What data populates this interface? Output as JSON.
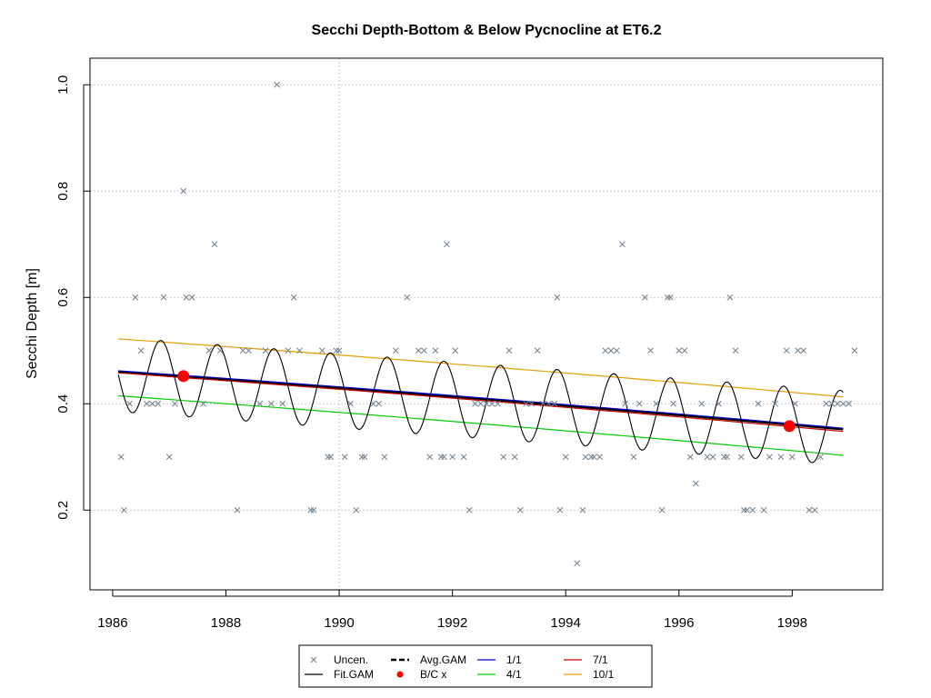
{
  "chart_data": {
    "type": "scatter",
    "title": "Secchi Depth-Bottom & Below Pycnocline at ET6.2",
    "xlabel": "",
    "ylabel": "Secchi Depth [m]",
    "xlim": [
      1985.6,
      1999.6
    ],
    "ylim": [
      0.05,
      1.05
    ],
    "x_ticks": [
      "1986",
      "1988",
      "1990",
      "1992",
      "1994",
      "1996",
      "1998"
    ],
    "y_ticks": [
      "0.2",
      "0.4",
      "0.6",
      "0.8",
      "1.0"
    ],
    "grid": true,
    "legend_position": "bottom",
    "legend": [
      {
        "label": "Uncen.",
        "kind": "x",
        "color": "#708090"
      },
      {
        "label": "Avg.GAM",
        "kind": "dash",
        "color": "#000000"
      },
      {
        "label": "1/1",
        "kind": "line",
        "color": "#0000cc"
      },
      {
        "label": "7/1",
        "kind": "line",
        "color": "#cc0000"
      },
      {
        "label": "Fit.GAM",
        "kind": "line",
        "color": "#000000"
      },
      {
        "label": "B/C x",
        "kind": "dot",
        "color": "#ff0000"
      },
      {
        "label": "4/1",
        "kind": "line",
        "color": "#00cc00"
      },
      {
        "label": "10/1",
        "kind": "line",
        "color": "#e69f00"
      }
    ],
    "series": [
      {
        "name": "Uncen.",
        "kind": "points",
        "color": "#708090",
        "points": [
          [
            1986.15,
            0.3
          ],
          [
            1986.2,
            0.2
          ],
          [
            1986.3,
            0.4
          ],
          [
            1986.4,
            0.6
          ],
          [
            1986.5,
            0.5
          ],
          [
            1986.6,
            0.4
          ],
          [
            1986.7,
            0.4
          ],
          [
            1986.8,
            0.4
          ],
          [
            1986.9,
            0.6
          ],
          [
            1987.0,
            0.3
          ],
          [
            1987.1,
            0.4
          ],
          [
            1987.25,
            0.8
          ],
          [
            1987.3,
            0.6
          ],
          [
            1987.4,
            0.6
          ],
          [
            1987.6,
            0.4
          ],
          [
            1987.7,
            0.5
          ],
          [
            1987.8,
            0.7
          ],
          [
            1987.9,
            0.5
          ],
          [
            1988.2,
            0.2
          ],
          [
            1988.3,
            0.5
          ],
          [
            1988.4,
            0.5
          ],
          [
            1988.6,
            0.4
          ],
          [
            1988.7,
            0.5
          ],
          [
            1988.8,
            0.4
          ],
          [
            1988.9,
            1.0
          ],
          [
            1989.0,
            0.4
          ],
          [
            1989.1,
            0.5
          ],
          [
            1989.2,
            0.6
          ],
          [
            1989.3,
            0.5
          ],
          [
            1989.5,
            0.2
          ],
          [
            1989.55,
            0.2
          ],
          [
            1989.7,
            0.5
          ],
          [
            1989.8,
            0.3
          ],
          [
            1989.85,
            0.3
          ],
          [
            1989.95,
            0.5
          ],
          [
            1990.0,
            0.5
          ],
          [
            1990.1,
            0.3
          ],
          [
            1990.2,
            0.4
          ],
          [
            1990.3,
            0.2
          ],
          [
            1990.4,
            0.3
          ],
          [
            1990.45,
            0.3
          ],
          [
            1990.6,
            0.4
          ],
          [
            1990.7,
            0.4
          ],
          [
            1990.8,
            0.3
          ],
          [
            1991.0,
            0.5
          ],
          [
            1991.2,
            0.6
          ],
          [
            1991.4,
            0.5
          ],
          [
            1991.5,
            0.5
          ],
          [
            1991.6,
            0.3
          ],
          [
            1991.7,
            0.5
          ],
          [
            1991.8,
            0.3
          ],
          [
            1991.85,
            0.3
          ],
          [
            1991.9,
            0.7
          ],
          [
            1992.0,
            0.3
          ],
          [
            1992.05,
            0.5
          ],
          [
            1992.2,
            0.3
          ],
          [
            1992.3,
            0.2
          ],
          [
            1992.4,
            0.4
          ],
          [
            1992.5,
            0.4
          ],
          [
            1992.6,
            0.4
          ],
          [
            1992.7,
            0.4
          ],
          [
            1992.8,
            0.4
          ],
          [
            1992.9,
            0.3
          ],
          [
            1993.0,
            0.5
          ],
          [
            1993.1,
            0.3
          ],
          [
            1993.2,
            0.2
          ],
          [
            1993.3,
            0.4
          ],
          [
            1993.4,
            0.4
          ],
          [
            1993.5,
            0.5
          ],
          [
            1993.6,
            0.4
          ],
          [
            1993.7,
            0.4
          ],
          [
            1993.8,
            0.4
          ],
          [
            1993.85,
            0.6
          ],
          [
            1993.9,
            0.2
          ],
          [
            1994.0,
            0.3
          ],
          [
            1994.2,
            0.1
          ],
          [
            1994.3,
            0.2
          ],
          [
            1994.35,
            0.3
          ],
          [
            1994.45,
            0.3
          ],
          [
            1994.5,
            0.3
          ],
          [
            1994.6,
            0.3
          ],
          [
            1994.7,
            0.5
          ],
          [
            1994.8,
            0.5
          ],
          [
            1994.9,
            0.5
          ],
          [
            1995.0,
            0.7
          ],
          [
            1995.05,
            0.4
          ],
          [
            1995.2,
            0.3
          ],
          [
            1995.3,
            0.4
          ],
          [
            1995.4,
            0.6
          ],
          [
            1995.5,
            0.5
          ],
          [
            1995.6,
            0.4
          ],
          [
            1995.7,
            0.2
          ],
          [
            1995.8,
            0.6
          ],
          [
            1995.85,
            0.6
          ],
          [
            1995.9,
            0.4
          ],
          [
            1996.0,
            0.5
          ],
          [
            1996.1,
            0.5
          ],
          [
            1996.2,
            0.3
          ],
          [
            1996.3,
            0.25
          ],
          [
            1996.4,
            0.4
          ],
          [
            1996.5,
            0.3
          ],
          [
            1996.6,
            0.3
          ],
          [
            1996.7,
            0.4
          ],
          [
            1996.8,
            0.3
          ],
          [
            1996.85,
            0.3
          ],
          [
            1996.9,
            0.6
          ],
          [
            1997.0,
            0.5
          ],
          [
            1997.1,
            0.3
          ],
          [
            1997.15,
            0.2
          ],
          [
            1997.2,
            0.2
          ],
          [
            1997.3,
            0.2
          ],
          [
            1997.4,
            0.4
          ],
          [
            1997.5,
            0.2
          ],
          [
            1997.6,
            0.3
          ],
          [
            1997.7,
            0.4
          ],
          [
            1997.8,
            0.3
          ],
          [
            1997.9,
            0.5
          ],
          [
            1998.0,
            0.3
          ],
          [
            1998.05,
            0.4
          ],
          [
            1998.1,
            0.5
          ],
          [
            1998.2,
            0.5
          ],
          [
            1998.3,
            0.2
          ],
          [
            1998.4,
            0.2
          ],
          [
            1998.5,
            0.3
          ],
          [
            1998.6,
            0.4
          ],
          [
            1998.7,
            0.4
          ],
          [
            1998.8,
            0.4
          ],
          [
            1998.9,
            0.4
          ],
          [
            1999.0,
            0.4
          ],
          [
            1999.1,
            0.5
          ]
        ]
      },
      {
        "name": "Fit.GAM",
        "kind": "seasonal",
        "color": "#000000",
        "start": 1986.1,
        "end": 1998.9,
        "start_level": 0.455,
        "end_level": 0.355,
        "amplitude": 0.07,
        "peak_phase": 0.85
      },
      {
        "name": "Avg.GAM",
        "kind": "trend",
        "color": "#000000",
        "start": 1986.1,
        "end": 1998.9,
        "y0": 0.46,
        "y1": 0.352
      },
      {
        "name": "1/1",
        "kind": "trend",
        "color": "#0000cc",
        "start": 1986.1,
        "end": 1998.9,
        "y0": 0.462,
        "y1": 0.354
      },
      {
        "name": "7/1",
        "kind": "trend",
        "color": "#cc0000",
        "start": 1986.1,
        "end": 1998.9,
        "y0": 0.458,
        "y1": 0.348
      },
      {
        "name": "4/1",
        "kind": "trend",
        "color": "#00cc00",
        "start": 1986.1,
        "end": 1998.9,
        "y0": 0.415,
        "y1": 0.303
      },
      {
        "name": "10/1",
        "kind": "trend",
        "color": "#e69f00",
        "start": 1986.1,
        "end": 1998.9,
        "y0": 0.522,
        "y1": 0.413
      },
      {
        "name": "B/C x",
        "kind": "dots",
        "color": "#ff0000",
        "points": [
          [
            1987.25,
            0.452
          ],
          [
            1997.95,
            0.358
          ]
        ]
      }
    ]
  }
}
